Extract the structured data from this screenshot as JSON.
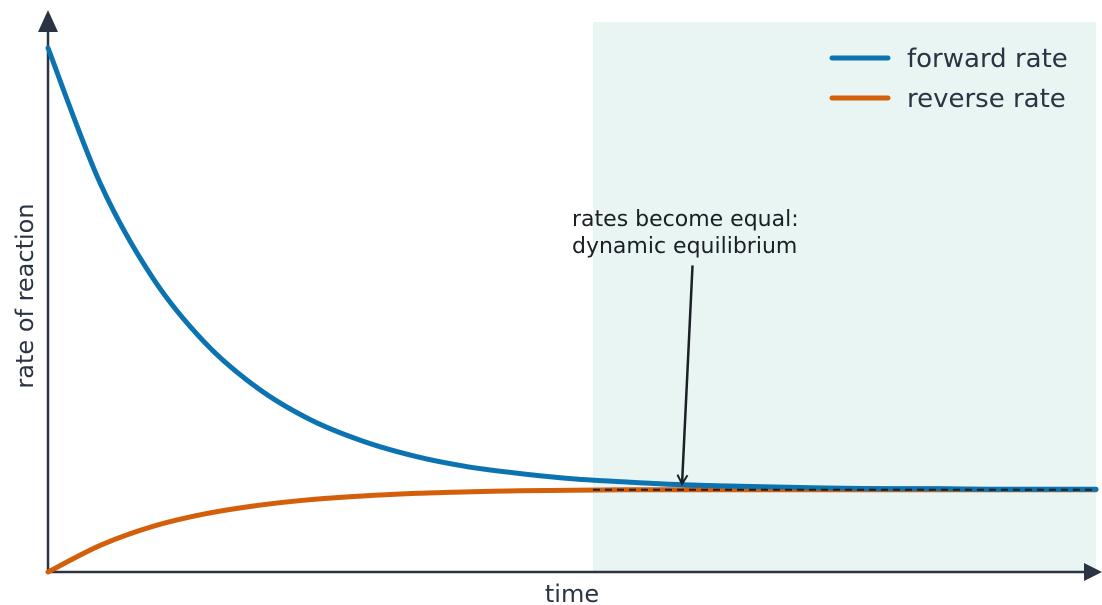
{
  "chart_data": {
    "type": "line",
    "title": "",
    "xlabel": "time",
    "ylabel": "rate of reaction",
    "xlim": [
      0,
      10
    ],
    "ylim": [
      0,
      1
    ],
    "grid": false,
    "legend": {
      "placement": "top-right"
    },
    "colors": {
      "axis": "#2b3443",
      "forward": "#0b74b0",
      "reverse": "#d35f0a",
      "equilibrium_region": "#e8f5f2",
      "equilibrium_line": "#1b1f26"
    },
    "series": [
      {
        "name": "forward rate",
        "x": [
          0,
          0.5,
          1,
          1.5,
          2,
          2.5,
          3,
          3.5,
          4,
          4.5,
          5,
          5.5,
          6,
          6.5,
          7,
          7.5,
          8,
          8.5,
          9,
          9.5,
          10
        ],
        "y": [
          1.0,
          0.741,
          0.561,
          0.437,
          0.351,
          0.291,
          0.25,
          0.221,
          0.201,
          0.188,
          0.178,
          0.172,
          0.167,
          0.164,
          0.162,
          0.16,
          0.159,
          0.159,
          0.158,
          0.158,
          0.158
        ]
      },
      {
        "name": "reverse rate",
        "x": [
          0,
          0.5,
          1,
          1.5,
          2,
          2.5,
          3,
          3.5,
          4,
          4.5,
          5,
          5.5,
          6,
          6.5,
          7,
          7.5,
          8,
          8.5,
          9,
          9.5,
          10
        ],
        "y": [
          0.0,
          0.051,
          0.087,
          0.111,
          0.127,
          0.138,
          0.145,
          0.15,
          0.153,
          0.155,
          0.156,
          0.157,
          0.157,
          0.157,
          0.157,
          0.157,
          0.157,
          0.157,
          0.157,
          0.157,
          0.157
        ]
      }
    ],
    "equilibrium": {
      "x_start": 5.2,
      "x_end": 10,
      "rate": 0.157
    },
    "annotation": {
      "lines": [
        "rates become equal:",
        "dynamic equilibrium"
      ],
      "text_x": 5.0,
      "text_y": 0.66,
      "arrow_from_x": 6.15,
      "arrow_from_y": 0.585,
      "arrow_to_x": 6.05,
      "arrow_to_y": 0.168
    }
  }
}
